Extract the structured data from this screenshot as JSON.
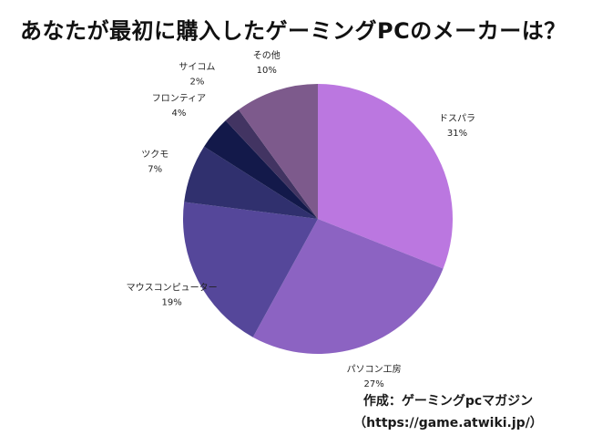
{
  "title": "あなたが最初に購入したゲーミングPCのメーカーは？",
  "credit": {
    "line1": "作成：ゲーミングpcマガジン",
    "line2": "（https://game.atwiki.jp/）"
  },
  "chart_data": {
    "type": "pie",
    "title": "あなたが最初に購入したゲーミングPCのメーカーは？",
    "start": "12 o'clock",
    "direction": "clockwise",
    "slices": [
      {
        "label": "ドスパラ",
        "value": 31,
        "pct_label": "31%",
        "color": "#bb77e0"
      },
      {
        "label": "パソコン工房",
        "value": 27,
        "pct_label": "27%",
        "color": "#8c63c2"
      },
      {
        "label": "マウスコンピューター",
        "value": 19,
        "pct_label": "19%",
        "color": "#55479a"
      },
      {
        "label": "ツクモ",
        "value": 7,
        "pct_label": "7%",
        "color": "#30306e"
      },
      {
        "label": "フロンティア",
        "value": 4,
        "pct_label": "4%",
        "color": "#13194a"
      },
      {
        "label": "サイコム",
        "value": 2,
        "pct_label": "2%",
        "color": "#423462"
      },
      {
        "label": "その他",
        "value": 10,
        "pct_label": "10%",
        "color": "#7d5a8c"
      }
    ]
  }
}
